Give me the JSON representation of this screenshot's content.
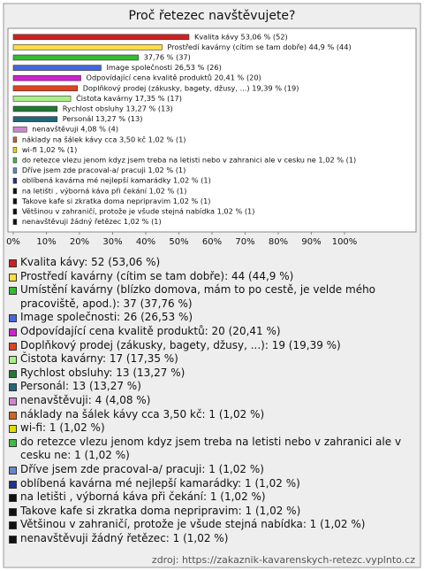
{
  "chart_data": {
    "type": "hbar",
    "title": "Proč řetezec navštěvujete?",
    "categories": [
      "Kvalita kávy: 52 (53,06 %)",
      "Prostředí kavárny (cítim se tam dobře): 44 (44,9 %)",
      "Umístění kavárny (blízko domova, mám to po cestě, je velde mého pracoviště, apod.): 37 (37,76 %)",
      "Image společnosti: 26 (26,53 %)",
      "Odpovídající cena kvalitě produktů: 20 (20,41 %)",
      "Doplňkový prodej (zákusky, bagety, džusy, ...): 19 (19,39 %)",
      "Čistota kavárny: 17 (17,35 %)",
      "Rychlost obsluhy: 13 (13,27 %)",
      "Personál: 13 (13,27 %)",
      "nenavštěvuji: 4 (4,08 %)",
      "náklady na šálek kávy cca 3,50 kč: 1 (1,02 %)",
      "wi-fi: 1 (1,02 %)",
      "do retezce vlezu jenom kdyz jsem treba na letisti nebo v zahranici ale v cesku ne: 1 (1,02 %)",
      "Dříve jsem zde pracoval-a/ pracuji: 1 (1,02 %)",
      "oblíbená kavárna mé nejlepší kamarádky: 1 (1,02 %)",
      "na letišti , výborná káva při čekání: 1 (1,02 %)",
      "Takove kafe si zkratka doma nepripravim: 1 (1,02 %)",
      "Většinou v zahraničí, protože je všude stejná nabídka: 1 (1,02 %)",
      "nenavštěvuji žádný řetězec: 1 (1,02 %)"
    ],
    "values": [
      53.06,
      44.9,
      37.76,
      26.53,
      20.41,
      19.39,
      17.35,
      13.27,
      13.27,
      4.08,
      1.02,
      1.02,
      1.02,
      1.02,
      1.02,
      1.02,
      1.02,
      1.02,
      1.02
    ],
    "value_labels": [
      "Kvalita kávy 53,06 % (52)",
      "Prostředí kavárny (cítim se tam dobře) 44,9 % (44)",
      "37,76 % (37)",
      "Image společnosti 26,53 % (26)",
      "Odpovídající cena kvalitě produktů 20,41 % (20)",
      "Doplňkový prodej (zákusky, bagety, džusy, ...) 19,39 % (19)",
      "Čistota kavárny 17,35 % (17)",
      "Rychlost obsluhy 13,27 % (13)",
      "Personál 13,27 % (13)",
      "nenavštěvuji 4,08 % (4)",
      "náklady na šálek kávy cca 3,50 kč 1,02 % (1)",
      "wi-fi 1,02 % (1)",
      "do retezce vlezu jenom kdyz jsem treba na letisti nebo v zahranici ale v cesku ne 1,02 % (1)",
      "Dříve jsem zde pracoval-a/ pracuji 1,02 % (1)",
      "oblíbená kavárna mé nejlepší kamarádky 1,02 % (1)",
      "na letišti , výborná káva při čekání 1,02 % (1)",
      "Takove kafe si zkratka doma nepripravim 1,02 % (1)",
      "Většinou v zahraničí, protože je všude stejná nabídka 1,02 % (1)",
      "nenavštěvuji žádný řetězec 1,02 % (1)"
    ],
    "colors": [
      "#cc2222",
      "#ffdd44",
      "#33bb33",
      "#4466dd",
      "#cc22cc",
      "#dd4422",
      "#aaee88",
      "#227733",
      "#226677",
      "#cc88cc",
      "#cc6622",
      "#dddd00",
      "#44bb44",
      "#6688cc",
      "#223388",
      "#111111",
      "#111111",
      "#111111",
      "#111111"
    ],
    "xlim": [
      0,
      100
    ],
    "xticks": [
      {
        "value": 0,
        "label": "0%"
      },
      {
        "value": 10,
        "label": "10%"
      },
      {
        "value": 20,
        "label": "20%"
      },
      {
        "value": 30,
        "label": "30%"
      },
      {
        "value": 40,
        "label": "40%"
      },
      {
        "value": 50,
        "label": "50%"
      },
      {
        "value": 60,
        "label": "60%"
      },
      {
        "value": 70,
        "label": "70%"
      },
      {
        "value": 80,
        "label": "80%"
      },
      {
        "value": 90,
        "label": "90%"
      },
      {
        "value": 100,
        "label": "100%"
      }
    ],
    "source": "zdroj: https://zakaznik-kavarenskych-retezc.vyplnto.cz"
  }
}
